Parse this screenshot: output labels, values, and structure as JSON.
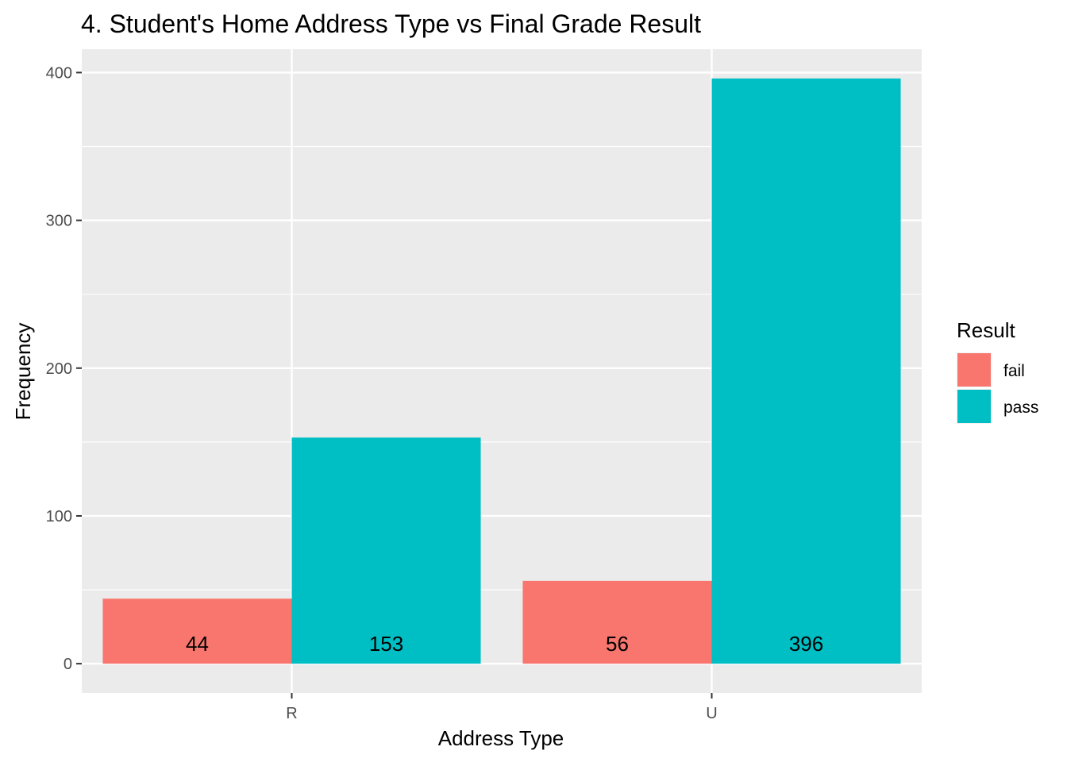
{
  "chart_data": {
    "type": "bar",
    "title": "4. Student's Home Address Type vs Final Grade Result",
    "xlabel": "Address Type",
    "ylabel": "Frequency",
    "categories": [
      "R",
      "U"
    ],
    "series": [
      {
        "name": "fail",
        "values": [
          44,
          56
        ],
        "color": "#F8766D"
      },
      {
        "name": "pass",
        "values": [
          153,
          396
        ],
        "color": "#00BFC4"
      }
    ],
    "ylim": [
      -19.8,
      415.8
    ],
    "yticks": [
      0,
      100,
      200,
      300,
      400
    ],
    "yticks_labels": [
      "0",
      "100",
      "200",
      "300",
      "400"
    ],
    "grid": true,
    "panel_background": "#EBEBEB",
    "legend": {
      "title": "Result",
      "placement": "right"
    },
    "bar_labels_shown": true
  }
}
